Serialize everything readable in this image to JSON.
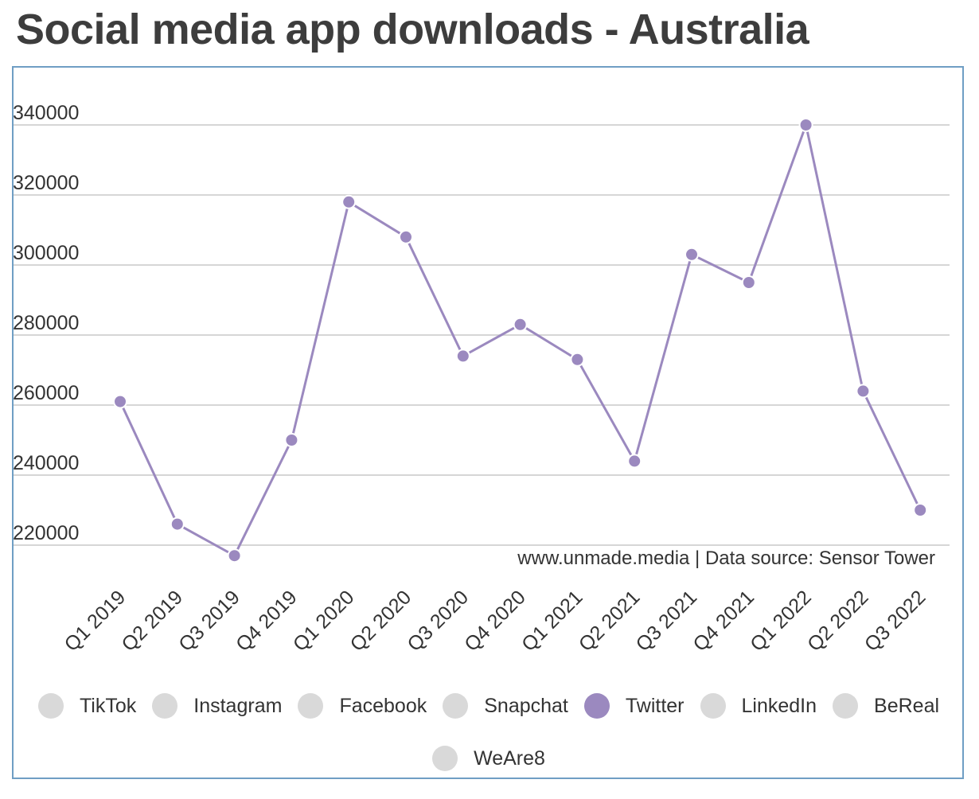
{
  "title": "Social media app downloads - Australia",
  "source_note": "www.unmade.media | Data source: Sensor Tower",
  "chart_data": {
    "type": "line",
    "title": "Social media app downloads - Australia",
    "xlabel": "",
    "ylabel": "",
    "categories": [
      "Q1 2019",
      "Q2 2019",
      "Q3 2019",
      "Q4 2019",
      "Q1 2020",
      "Q2 2020",
      "Q3 2020",
      "Q4 2020",
      "Q1 2021",
      "Q2 2021",
      "Q3 2021",
      "Q4 2021",
      "Q1 2022",
      "Q2 2022",
      "Q3 2022"
    ],
    "series": [
      {
        "name": "Twitter",
        "color": "#9b89bf",
        "values": [
          261000,
          226000,
          217000,
          250000,
          318000,
          308000,
          274000,
          283000,
          273000,
          244000,
          303000,
          295000,
          340000,
          264000,
          230000
        ]
      }
    ],
    "yticks": [
      "220000",
      "240000",
      "260000",
      "280000",
      "300000",
      "320000",
      "340000"
    ],
    "ylim": [
      210000,
      350000
    ],
    "grid": true,
    "legend_position": "bottom"
  },
  "legend": [
    {
      "label": "TikTok",
      "active": false,
      "color": "#d9d9d9"
    },
    {
      "label": "Instagram",
      "active": false,
      "color": "#d9d9d9"
    },
    {
      "label": "Facebook",
      "active": false,
      "color": "#d9d9d9"
    },
    {
      "label": "Snapchat",
      "active": false,
      "color": "#d9d9d9"
    },
    {
      "label": "Twitter",
      "active": true,
      "color": "#9b89bf"
    },
    {
      "label": "LinkedIn",
      "active": false,
      "color": "#d9d9d9"
    },
    {
      "label": "BeReal",
      "active": false,
      "color": "#d9d9d9"
    },
    {
      "label": "WeAre8",
      "active": false,
      "color": "#d9d9d9"
    }
  ]
}
